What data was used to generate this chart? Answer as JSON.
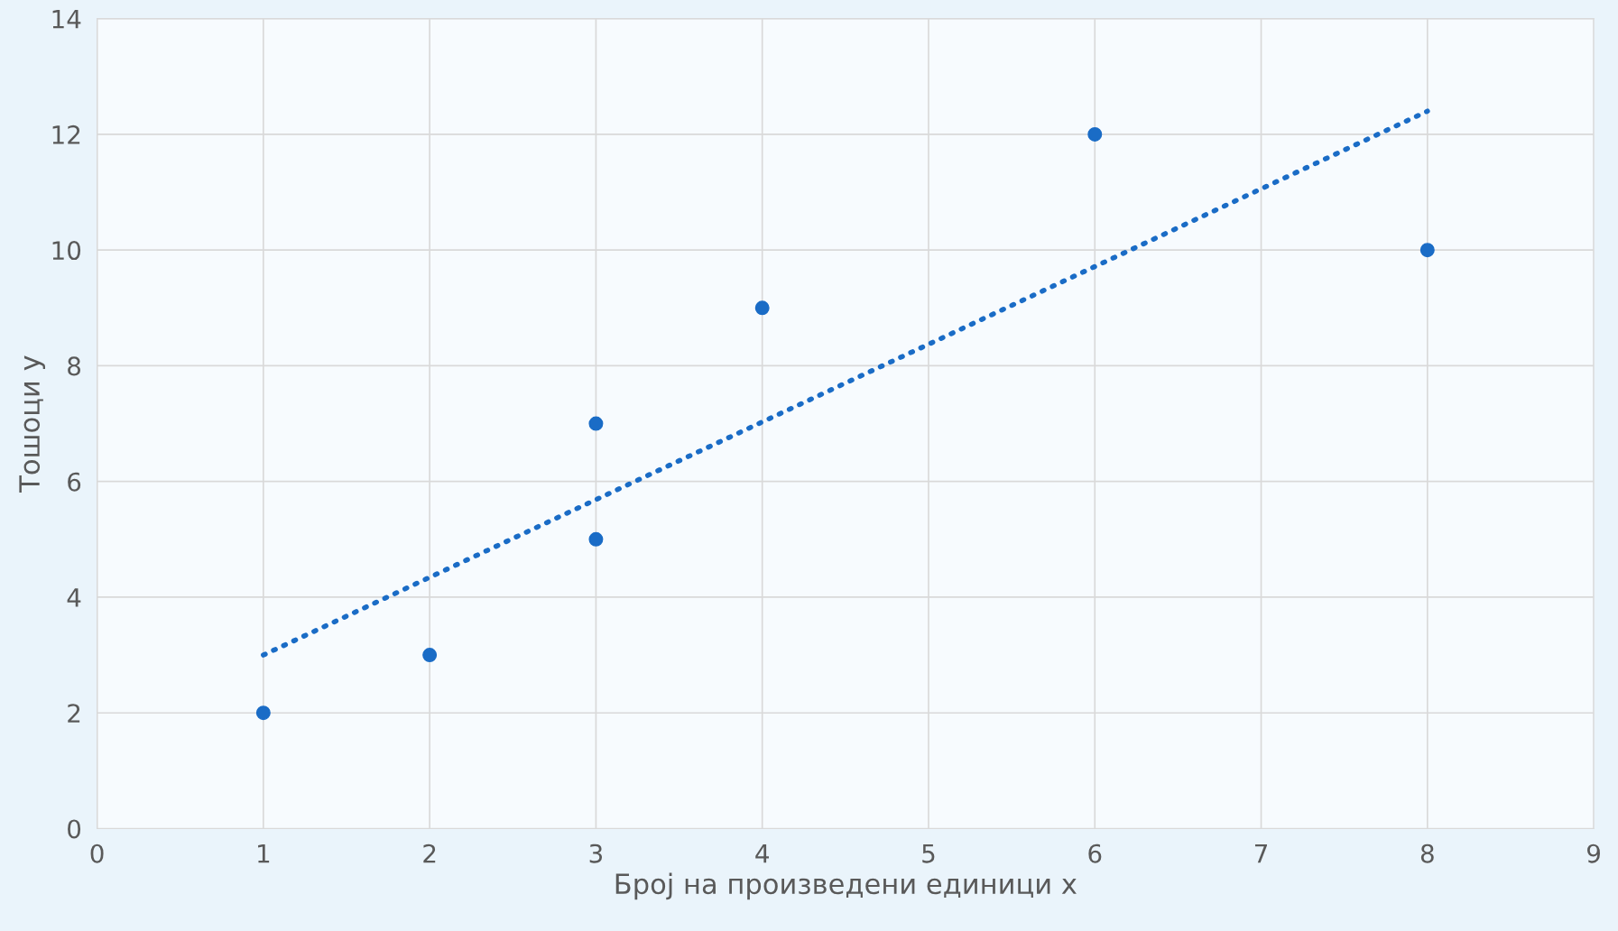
{
  "chart_data": {
    "type": "scatter",
    "xlabel": "Број на произведени единици x",
    "ylabel": "Тошоци y",
    "xlim": [
      0,
      9
    ],
    "xticks": [
      0,
      1,
      2,
      3,
      4,
      5,
      6,
      7,
      8,
      9
    ],
    "ylim": [
      0,
      14
    ],
    "yticks": [
      0,
      2,
      4,
      6,
      8,
      10,
      12,
      14
    ],
    "grid": true,
    "legend": false,
    "series": [
      {
        "color": "#1a6cc6",
        "marker": "circle",
        "x": [
          1,
          2,
          3,
          3,
          4,
          6,
          8
        ],
        "values": [
          2,
          3,
          7,
          5,
          9,
          12,
          10
        ]
      },
      {
        "type": "line",
        "color": "#1a6cc6",
        "line_style": "dotted",
        "marker": "none",
        "x": [
          1,
          8
        ],
        "values": [
          3.0,
          12.4
        ]
      }
    ]
  }
}
